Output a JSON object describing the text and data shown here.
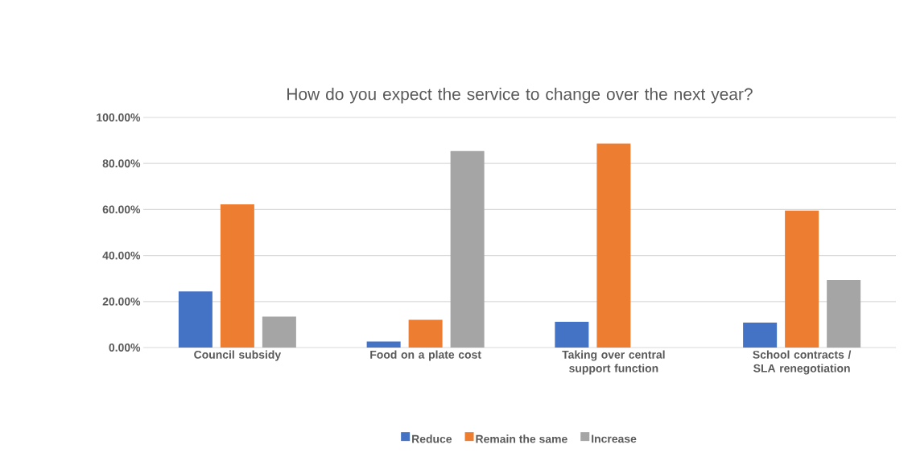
{
  "chart_data": {
    "type": "bar",
    "title": "How do you expect the service to change over the next year?",
    "categories": [
      "Council subsidy",
      "Food on a plate cost",
      "Taking over central support function",
      "School contracts / SLA renegotiation"
    ],
    "series": [
      {
        "name": "Reduce",
        "color": "#4472c4",
        "values": [
          24.4,
          2.6,
          11.2,
          10.8
        ]
      },
      {
        "name": "Remain the same",
        "color": "#ed7d31",
        "values": [
          62.2,
          12.1,
          88.6,
          59.5
        ]
      },
      {
        "name": "Increase",
        "color": "#a5a5a5",
        "values": [
          13.5,
          85.4,
          0,
          29.4
        ]
      }
    ],
    "ylim": [
      0,
      100
    ],
    "yticks": [
      {
        "value": 0,
        "label": "0.00%"
      },
      {
        "value": 20,
        "label": "20.00%"
      },
      {
        "value": 40,
        "label": "40.00%"
      },
      {
        "value": 60,
        "label": "60.00%"
      },
      {
        "value": 80,
        "label": "80.00%"
      },
      {
        "value": 100,
        "label": "100.00%"
      }
    ],
    "grid": "y",
    "legend": "bottom"
  }
}
